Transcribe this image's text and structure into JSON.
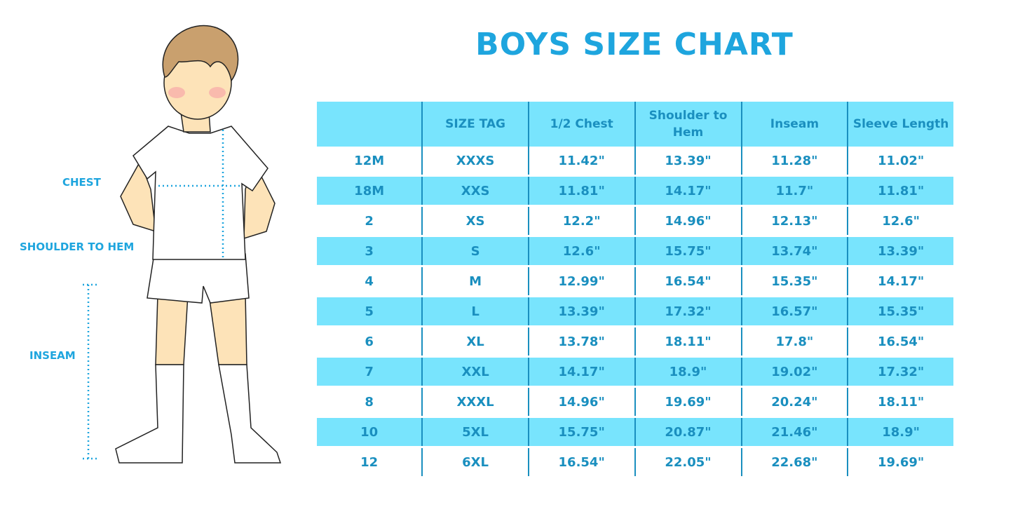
{
  "title": "BOYS SIZE CHART",
  "figure_labels": {
    "chest": "CHEST",
    "shoulder_to_hem": "SHOULDER TO HEM",
    "inseam": "INSEAM"
  },
  "colors": {
    "accent": "#1ea5de",
    "header_bg": "#78e4fd",
    "text": "#1a8fbf"
  },
  "table": {
    "headers": [
      "",
      "SIZE TAG",
      "1/2 Chest",
      "Shoulder to Hem",
      "Inseam",
      "Sleeve Length"
    ],
    "rows": [
      [
        "12M",
        "XXXS",
        "11.42\"",
        "13.39\"",
        "11.28\"",
        "11.02\""
      ],
      [
        "18M",
        "XXS",
        "11.81\"",
        "14.17\"",
        "11.7\"",
        "11.81\""
      ],
      [
        "2",
        "XS",
        "12.2\"",
        "14.96\"",
        "12.13\"",
        "12.6\""
      ],
      [
        "3",
        "S",
        "12.6\"",
        "15.75\"",
        "13.74\"",
        "13.39\""
      ],
      [
        "4",
        "M",
        "12.99\"",
        "16.54\"",
        "15.35\"",
        "14.17\""
      ],
      [
        "5",
        "L",
        "13.39\"",
        "17.32\"",
        "16.57\"",
        "15.35\""
      ],
      [
        "6",
        "XL",
        "13.78\"",
        "18.11\"",
        "17.8\"",
        "16.54\""
      ],
      [
        "7",
        "XXL",
        "14.17\"",
        "18.9\"",
        "19.02\"",
        "17.32\""
      ],
      [
        "8",
        "XXXL",
        "14.96\"",
        "19.69\"",
        "20.24\"",
        "18.11\""
      ],
      [
        "10",
        "5XL",
        "15.75\"",
        "20.87\"",
        "21.46\"",
        "18.9\""
      ],
      [
        "12",
        "6XL",
        "16.54\"",
        "22.05\"",
        "22.68\"",
        "19.69\""
      ]
    ]
  }
}
